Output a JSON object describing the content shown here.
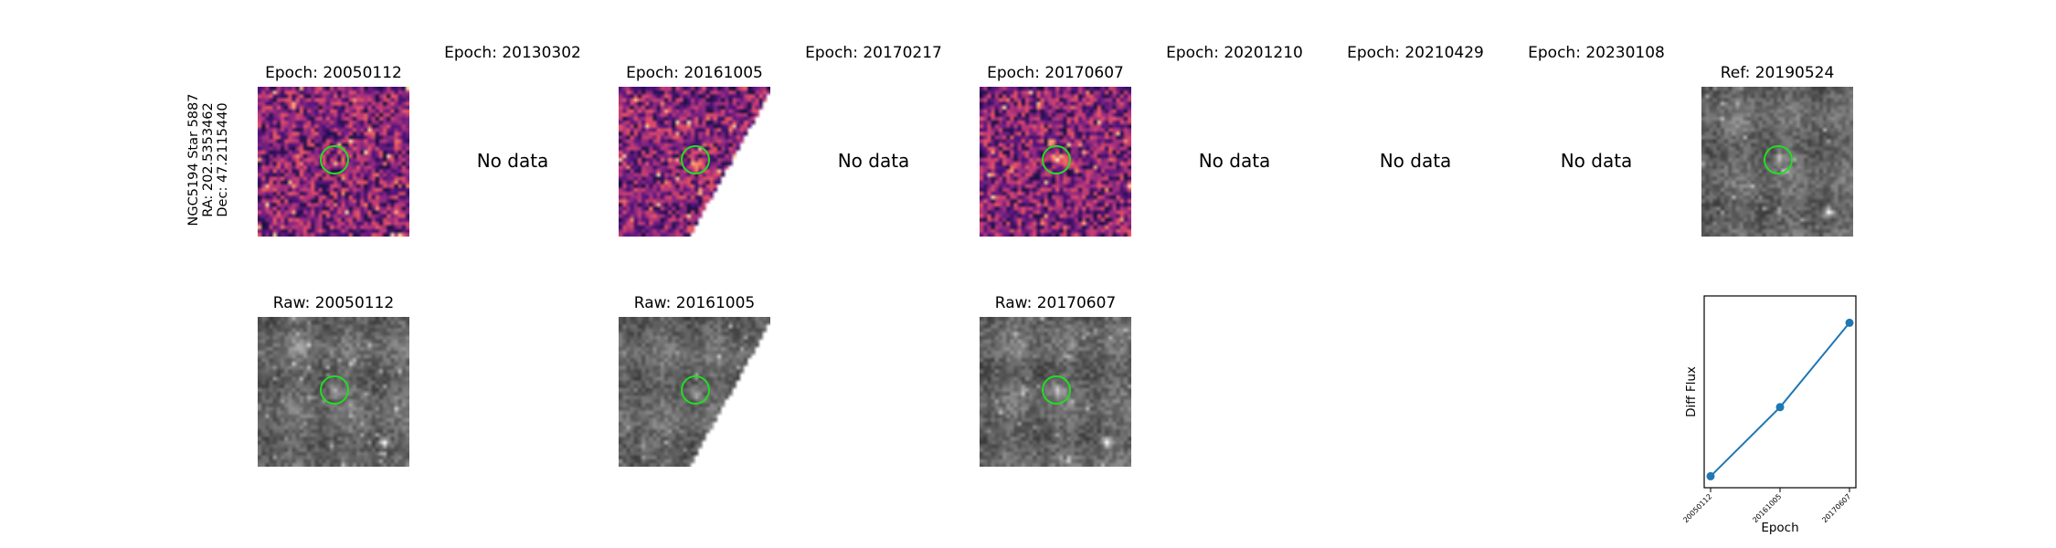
{
  "target": {
    "name": "NGC5194 Star 5887",
    "ra": "RA: 202.5353462",
    "dec": "Dec: 47.2115440"
  },
  "no_data_text": "No data",
  "epochs": [
    {
      "title": "Epoch: 20050112",
      "has_data": true,
      "raw_title": "Raw: 20050112"
    },
    {
      "title": "Epoch: 20130302",
      "has_data": false
    },
    {
      "title": "Epoch: 20161005",
      "has_data": true,
      "raw_title": "Raw: 20161005"
    },
    {
      "title": "Epoch: 20170217",
      "has_data": false
    },
    {
      "title": "Epoch: 20170607",
      "has_data": true,
      "raw_title": "Raw: 20170607"
    },
    {
      "title": "Epoch: 20201210",
      "has_data": false
    },
    {
      "title": "Epoch: 20210429",
      "has_data": false
    },
    {
      "title": "Epoch: 20230108",
      "has_data": false
    }
  ],
  "reference": {
    "title": "Ref: 20190524"
  },
  "colors": {
    "aperture": "#22dd22",
    "series": "#1f77b4",
    "diff_cmap": "magma",
    "raw_cmap": "gray"
  },
  "chart_data": {
    "type": "line",
    "x": [
      "20050112",
      "20161005",
      "20170607"
    ],
    "y": [
      0.06,
      0.42,
      0.86
    ],
    "xlabel": "Epoch",
    "ylabel": "Diff Flux",
    "ylim": [
      0,
      1
    ],
    "y_ticks_shown": false,
    "grid": false,
    "marker": "circle"
  }
}
